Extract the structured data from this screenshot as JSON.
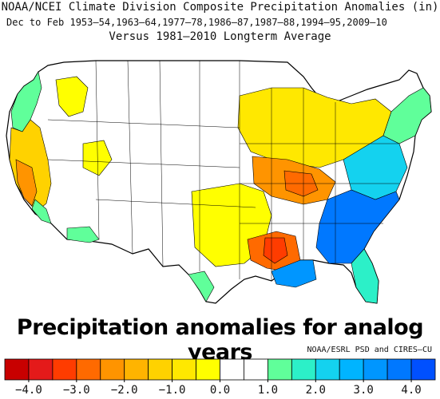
{
  "header": {
    "title": "NOAA/NCEI Climate Division Composite Precipitation Anomalies (in)",
    "subtitle": "Dec to Feb  1953–54,1963–64,1977–78,1986–87,1987–88,1994–95,2009–10",
    "reference": "Versus 1981–2010 Longterm Average"
  },
  "overlay_title": "Precipitation anomalies for analog years",
  "credit": "NOAA/ESRL PSD and CIRES–CU",
  "colorbar": {
    "colors": [
      "#c80000",
      "#e41a1a",
      "#ff3c00",
      "#ff6a00",
      "#ff9400",
      "#ffb400",
      "#ffd200",
      "#ffe800",
      "#ffff00",
      "#ffffff",
      "#ffffff",
      "#60ff9a",
      "#2cf0c8",
      "#14d2ef",
      "#00b4ff",
      "#0096ff",
      "#0078ff",
      "#0050ff"
    ],
    "tick_labels": [
      "−4.0",
      "−3.0",
      "−2.0",
      "−1.0",
      "0.0",
      "1.0",
      "2.0",
      "3.0",
      "4.0"
    ]
  },
  "regions": [
    {
      "name": "pacific-northwest-coast",
      "color": "#60ff9a"
    },
    {
      "name": "california-oregon-interior",
      "color": "#ffd200"
    },
    {
      "name": "northern-rockies",
      "color": "#ffff00"
    },
    {
      "name": "great-lakes-ohio-valley",
      "color": "#ffe800"
    },
    {
      "name": "tennessee-valley",
      "color": "#ff9400"
    },
    {
      "name": "lower-mississippi",
      "color": "#ff6a00"
    },
    {
      "name": "southeast-coast",
      "color": "#0078ff"
    },
    {
      "name": "mid-atlantic",
      "color": "#14d2ef"
    },
    {
      "name": "northeast",
      "color": "#60ff9a"
    },
    {
      "name": "southern-plains",
      "color": "#ffff00"
    },
    {
      "name": "arizona",
      "color": "#60ff9a"
    },
    {
      "name": "south-texas",
      "color": "#60ff9a"
    },
    {
      "name": "florida",
      "color": "#2cf0c8"
    }
  ]
}
